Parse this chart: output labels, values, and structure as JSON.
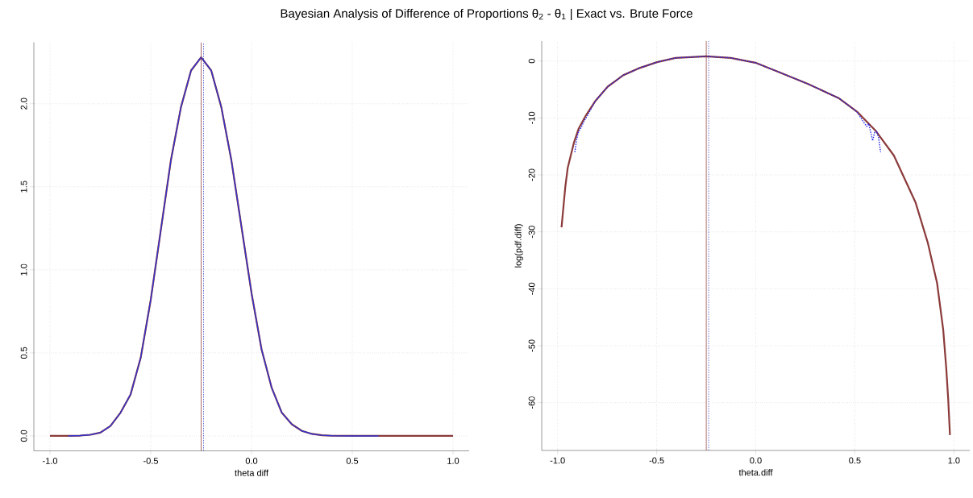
{
  "chart_data": [
    {
      "type": "line",
      "title": "Bayesian Analysis of Difference of Proportions θ$_{2}$ - θ$_{1}$ | Exact vs. Brute Force",
      "xlabel": "theta diff",
      "xlim": [
        -1.08,
        1.08
      ],
      "ylim": [
        -0.09,
        2.37
      ],
      "xticks": [
        {
          "value": -1,
          "label": "-1.0"
        },
        {
          "value": -0.5,
          "label": "-0.5"
        },
        {
          "value": 0,
          "label": "0.0"
        },
        {
          "value": 0.5,
          "label": "0.5"
        },
        {
          "value": 1,
          "label": "1.0"
        }
      ],
      "yticks": [
        {
          "value": 0,
          "label": "0.0"
        },
        {
          "value": 0.5,
          "label": "0.5"
        },
        {
          "value": 1,
          "label": "1.0"
        },
        {
          "value": 1.5,
          "label": "1.5"
        },
        {
          "value": 2,
          "label": "2.0"
        }
      ],
      "grid": true,
      "series": [
        {
          "color": "#8b3a3a",
          "line_style": "solid",
          "x": [
            -1.0,
            -0.9,
            -0.85,
            -0.8,
            -0.75,
            -0.7,
            -0.65,
            -0.6,
            -0.55,
            -0.5,
            -0.45,
            -0.4,
            -0.35,
            -0.3,
            -0.25,
            -0.2,
            -0.15,
            -0.1,
            -0.05,
            0.0,
            0.05,
            0.1,
            0.15,
            0.2,
            0.25,
            0.3,
            0.35,
            0.4,
            0.5,
            0.6,
            0.7,
            0.8,
            0.9,
            1.0
          ],
          "values": [
            0,
            0,
            0.002,
            0.007,
            0.02,
            0.06,
            0.14,
            0.25,
            0.47,
            0.82,
            1.24,
            1.66,
            1.98,
            2.2,
            2.28,
            2.2,
            1.98,
            1.66,
            1.26,
            0.86,
            0.52,
            0.29,
            0.14,
            0.07,
            0.03,
            0.012,
            0.004,
            0.001,
            0,
            0,
            0,
            0,
            0,
            0
          ]
        },
        {
          "color": "#3333cc",
          "line_style": "solid",
          "x": [
            -0.91,
            -0.85,
            -0.8,
            -0.75,
            -0.7,
            -0.65,
            -0.6,
            -0.55,
            -0.5,
            -0.45,
            -0.4,
            -0.35,
            -0.3,
            -0.25,
            -0.2,
            -0.15,
            -0.1,
            -0.05,
            0.0,
            0.05,
            0.1,
            0.15,
            0.2,
            0.25,
            0.3,
            0.35,
            0.4,
            0.5,
            0.6,
            0.63
          ],
          "values": [
            0,
            0.002,
            0.007,
            0.02,
            0.06,
            0.14,
            0.25,
            0.47,
            0.82,
            1.24,
            1.66,
            1.98,
            2.2,
            2.28,
            2.2,
            1.98,
            1.66,
            1.26,
            0.86,
            0.52,
            0.29,
            0.14,
            0.07,
            0.03,
            0.012,
            0.004,
            0.001,
            0,
            0,
            0
          ]
        }
      ],
      "ref_lines": [
        {
          "axis": "x",
          "value": -0.25,
          "color": "#8b3a3a",
          "line_style": "solid"
        },
        {
          "axis": "x",
          "value": -0.238,
          "color": "#3333cc",
          "line_style": "dotted"
        }
      ]
    },
    {
      "type": "line",
      "xlabel": "theta.diff",
      "ylabel": "log(pdf.diff)",
      "xlim": [
        -1.08,
        1.08
      ],
      "ylim": [
        -68.4,
        3.5
      ],
      "xticks": [
        {
          "value": -1,
          "label": "-1.0"
        },
        {
          "value": -0.5,
          "label": "-0.5"
        },
        {
          "value": 0,
          "label": "0.0"
        },
        {
          "value": 0.5,
          "label": "0.5"
        },
        {
          "value": 1,
          "label": "1.0"
        }
      ],
      "yticks": [
        0,
        -10,
        -20,
        -30,
        -40,
        -50,
        -60
      ],
      "grid": true,
      "series": [
        {
          "color": "#8b3a3a",
          "line_style": "solid",
          "x": [
            -0.98,
            -0.961,
            -0.949,
            -0.918,
            -0.894,
            -0.856,
            -0.809,
            -0.747,
            -0.669,
            -0.592,
            -0.498,
            -0.405,
            -0.25,
            -0.126,
            -0.002,
            0.107,
            0.262,
            0.418,
            0.511,
            0.604,
            0.697,
            0.806,
            0.868,
            0.915,
            0.946,
            0.961,
            0.971,
            0.98
          ],
          "values": [
            -29.2,
            -22.1,
            -18.8,
            -14.4,
            -11.9,
            -9.5,
            -7.0,
            -4.5,
            -2.5,
            -1.3,
            -0.2,
            0.55,
            0.82,
            0.55,
            -0.3,
            -1.8,
            -4.0,
            -6.5,
            -8.9,
            -12.2,
            -16.6,
            -24.8,
            -31.9,
            -39.0,
            -47.2,
            -53.8,
            -59.3,
            -65.7
          ]
        },
        {
          "color": "#2222ee",
          "line_style": "dotted",
          "x": [
            -0.913,
            -0.905,
            -0.895,
            -0.88,
            -0.87,
            -0.85,
            -0.809,
            -0.747,
            -0.669,
            -0.592,
            -0.498,
            -0.405,
            -0.25,
            -0.126,
            -0.002,
            0.107,
            0.262,
            0.418,
            0.51,
            0.54,
            0.56,
            0.57,
            0.59,
            0.6,
            0.61,
            0.62,
            0.63
          ],
          "values": [
            -16.0,
            -14.0,
            -12.5,
            -11.6,
            -10.8,
            -9.6,
            -7.0,
            -4.5,
            -2.5,
            -1.3,
            -0.2,
            0.55,
            0.82,
            0.55,
            -0.3,
            -1.8,
            -4.0,
            -6.5,
            -8.9,
            -10.5,
            -11.5,
            -11.0,
            -14.0,
            -12.5,
            -12.3,
            -13.5,
            -16.0
          ]
        }
      ],
      "ref_lines": [
        {
          "axis": "x",
          "value": -0.25,
          "color": "#8b3a3a",
          "line_style": "solid"
        },
        {
          "axis": "x",
          "value": -0.238,
          "color": "#3333cc",
          "line_style": "dotted"
        }
      ]
    }
  ]
}
